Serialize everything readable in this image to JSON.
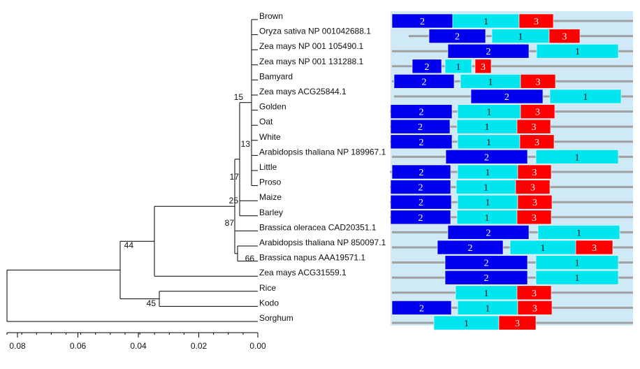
{
  "tree": {
    "taxa": [
      "Brown",
      "Oryza sativa NP 001042688.1",
      "Zea mays NP 001 105490.1",
      "Zea mays NP 001 131288.1",
      "Bamyard",
      "Zea mays ACG25844.1",
      "Golden",
      "Oat",
      "White",
      "Arabidopsis thaliana NP 189967.1",
      "Little",
      "Proso",
      "Maize",
      "Barley",
      "Brassica oleracea CAD20351.1",
      "Arabidopsis thaliana NP 850097.1",
      "Brassica napus AAA19571.1",
      "Zea mays ACG31559.1",
      "Rice",
      "Kodo",
      "Sorghum"
    ],
    "bootstrap": [
      "15",
      "13",
      "17",
      "25",
      "87",
      "66",
      "44",
      "45"
    ],
    "scale_ticks": [
      "0.08",
      "0.06",
      "0.04",
      "0.02",
      "0.00"
    ]
  },
  "motifs": {
    "colors": {
      "1": "#00e5ee",
      "2": "#0000ee",
      "3": "#ff0000"
    },
    "panel_color": "#cfe9f7",
    "line_color": "#a0a0a0",
    "rows": [
      [
        [
          "2",
          "2"
        ],
        [
          "1",
          "1"
        ],
        [
          "3",
          "3"
        ]
      ],
      [
        [
          "2",
          "2"
        ],
        [
          "1",
          "1"
        ],
        [
          "3",
          "3"
        ]
      ],
      [
        [
          "2",
          "2"
        ],
        [
          "1",
          "1"
        ]
      ],
      [
        [
          "2",
          "2"
        ],
        [
          "1",
          "1"
        ],
        [
          "3",
          "3"
        ]
      ],
      [
        [
          "2",
          "2"
        ],
        [
          "1",
          "1"
        ],
        [
          "3",
          "3"
        ]
      ],
      [
        [
          "2",
          "2"
        ],
        [
          "1",
          "1"
        ]
      ],
      [
        [
          "2",
          "2"
        ],
        [
          "1",
          "1"
        ],
        [
          "3",
          "3"
        ]
      ],
      [
        [
          "2",
          "2"
        ],
        [
          "1",
          "1"
        ],
        [
          "3",
          "3"
        ]
      ],
      [
        [
          "2",
          "2"
        ],
        [
          "1",
          "1"
        ],
        [
          "3",
          "3"
        ]
      ],
      [
        [
          "2",
          "2"
        ],
        [
          "1",
          "1"
        ]
      ],
      [
        [
          "2",
          "2"
        ],
        [
          "1",
          "1"
        ],
        [
          "3",
          "3"
        ]
      ],
      [
        [
          "2",
          "2"
        ],
        [
          "1",
          "1"
        ],
        [
          "3",
          "3"
        ]
      ],
      [
        [
          "2",
          "2"
        ],
        [
          "1",
          "1"
        ],
        [
          "3",
          "3"
        ]
      ],
      [
        [
          "2",
          "2"
        ],
        [
          "1",
          "1"
        ],
        [
          "3",
          "3"
        ]
      ],
      [
        [
          "2",
          "2"
        ],
        [
          "1",
          "1"
        ]
      ],
      [
        [
          "2",
          "2"
        ],
        [
          "1",
          "1"
        ],
        [
          "3",
          "3"
        ]
      ],
      [
        [
          "2",
          "2"
        ],
        [
          "1",
          "1"
        ]
      ],
      [
        [
          "2",
          "2"
        ],
        [
          "1",
          "1"
        ]
      ],
      [
        [
          "1",
          "1"
        ],
        [
          "3",
          "3"
        ]
      ],
      [
        [
          "2",
          "2"
        ],
        [
          "1",
          "1"
        ],
        [
          "3",
          "3"
        ]
      ],
      [
        [
          "1",
          "1"
        ],
        [
          "3",
          "3"
        ]
      ]
    ]
  }
}
